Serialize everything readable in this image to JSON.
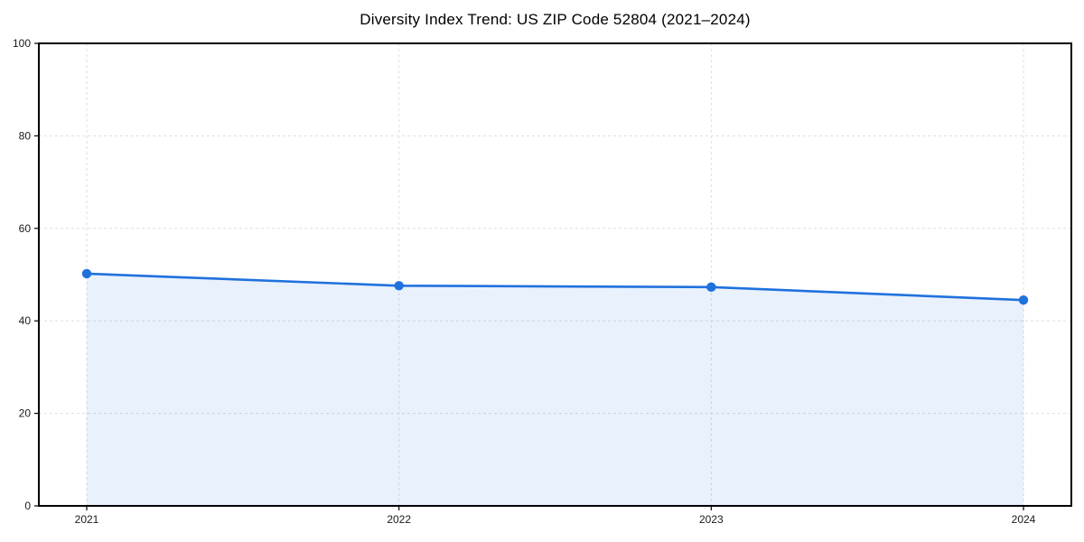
{
  "chart_data": {
    "type": "area",
    "title": "Diversity Index Trend: US ZIP Code 52804 (2021–2024)",
    "categories": [
      "2021",
      "2022",
      "2023",
      "2024"
    ],
    "series": [
      {
        "name": "Diversity Index",
        "values": [
          50.2,
          47.6,
          47.3,
          44.5
        ]
      }
    ],
    "xlabel": "",
    "ylabel": "",
    "ylim": [
      0,
      100
    ],
    "yticks": [
      0,
      20,
      40,
      60,
      80,
      100
    ],
    "grid": "dashed",
    "legend": "none",
    "colors": {
      "line": "#2071de",
      "marker": "#2071de",
      "fill": "#2071de",
      "fill_opacity": 0.1,
      "grid": "#dedede",
      "axis": "#000000",
      "tick_text": "#1a1a1a",
      "title_text": "#000000",
      "background": "#ffffff"
    }
  }
}
